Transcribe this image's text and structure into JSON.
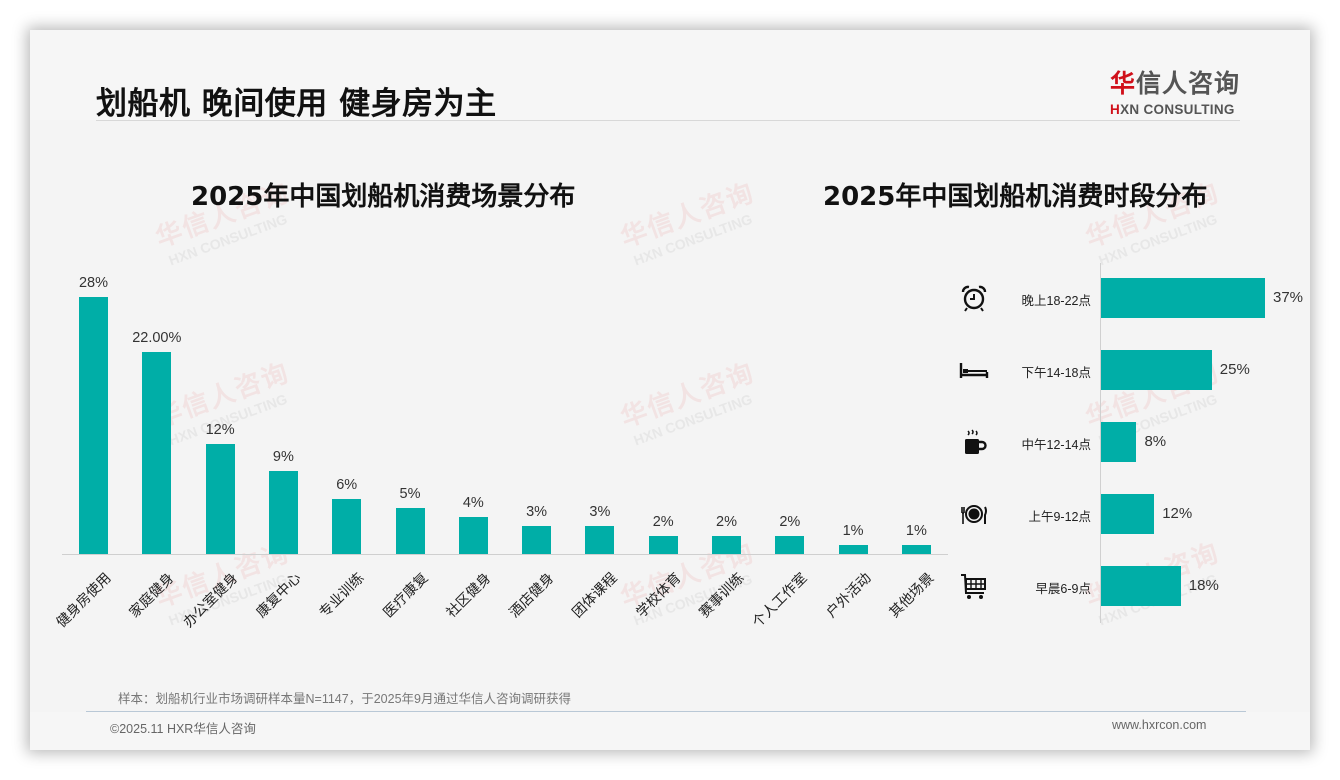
{
  "header": {
    "title": "划船机 晚间使用 健身房为主",
    "logo": {
      "cn_red": "华",
      "cn_rest": "信人咨询",
      "en_red": "H",
      "en_rest": "XN CONSULTING"
    }
  },
  "watermark": {
    "cn": "华信人咨询",
    "en": "HXN CONSULTING"
  },
  "colors": {
    "bar": "#00aea7",
    "brand_red": "#d0101a",
    "title": "#111111"
  },
  "chart_data": [
    {
      "type": "bar",
      "title": "2025年中国划船机消费场景分布",
      "xlabel": "",
      "ylabel": "",
      "categories": [
        "健身房使用",
        "家庭健身",
        "办公室健身",
        "康复中心",
        "专业训练",
        "医疗康复",
        "社区健身",
        "酒店健身",
        "团体课程",
        "学校体育",
        "赛事训练",
        "个人工作室",
        "户外活动",
        "其他场景"
      ],
      "values": [
        28,
        22,
        12,
        9,
        6,
        5,
        4,
        3,
        3,
        2,
        2,
        2,
        1,
        1
      ],
      "value_labels": [
        "28%",
        "22.00%",
        "12%",
        "9%",
        "6%",
        "5%",
        "4%",
        "3%",
        "3%",
        "2%",
        "2%",
        "2%",
        "1%",
        "1%"
      ],
      "grid": false,
      "legend": "none",
      "ylim": [
        0,
        30
      ]
    },
    {
      "type": "bar",
      "orientation": "horizontal",
      "title": "2025年中国划船机消费时段分布",
      "categories": [
        "晚上18-22点",
        "下午14-18点",
        "中午12-14点",
        "上午9-12点",
        "早晨6-9点"
      ],
      "icons": [
        "alarm-clock-icon",
        "bed-icon",
        "coffee-cup-icon",
        "plate-cutlery-icon",
        "shopping-cart-icon"
      ],
      "values": [
        37,
        25,
        8,
        12,
        18
      ],
      "value_labels": [
        "37%",
        "25%",
        "8%",
        "12%",
        "18%"
      ],
      "grid": false,
      "legend": "none",
      "xlim": [
        0,
        40
      ]
    }
  ],
  "footer": {
    "note": "样本：划船机行业市场调研样本量N=1147，于2025年9月通过华信人咨询调研获得",
    "copyright": "©2025.11 HXR华信人咨询",
    "website": "www.hxrcon.com"
  }
}
